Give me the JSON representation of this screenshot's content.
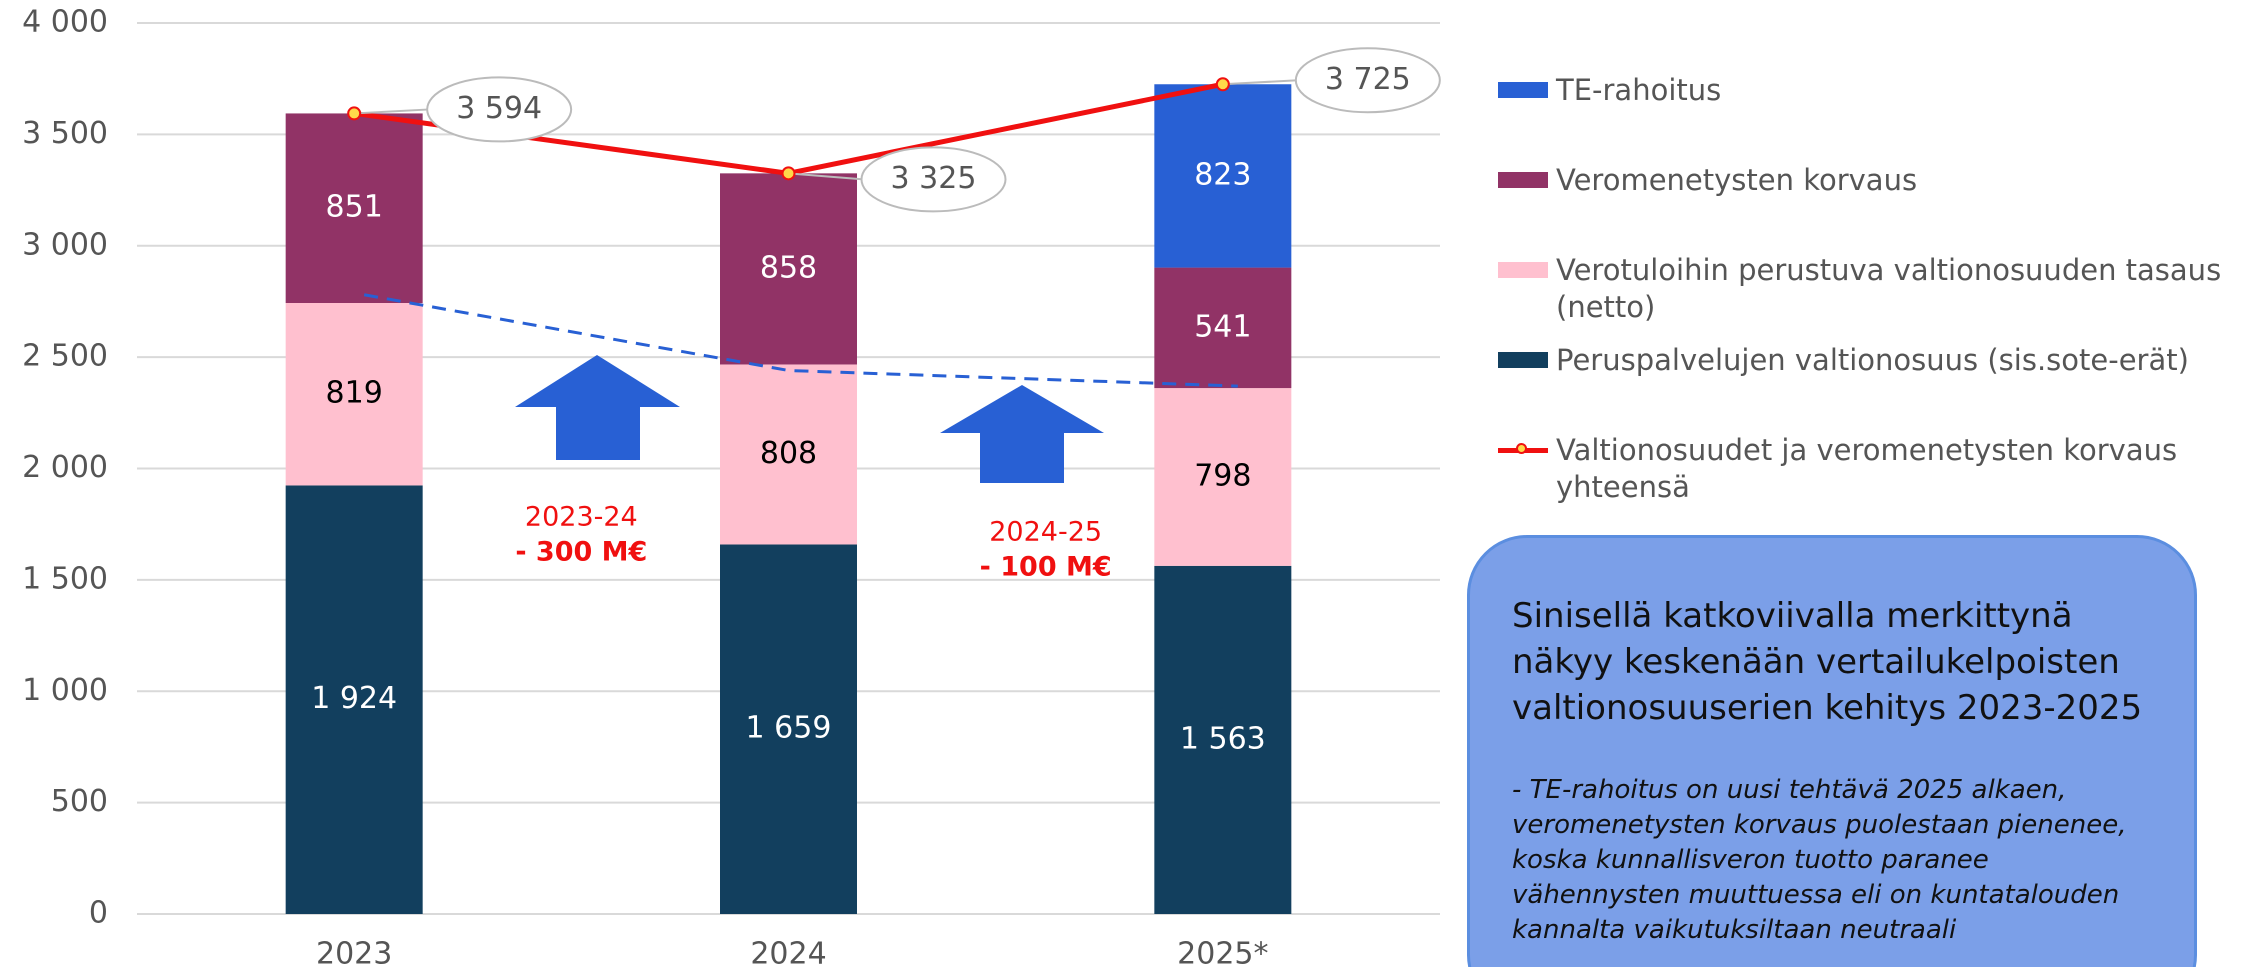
{
  "chart_data": {
    "type": "bar",
    "stacked": true,
    "categories": [
      "2023",
      "2024",
      "2025*"
    ],
    "ylim": [
      0,
      4000
    ],
    "yticks": [
      0,
      500,
      {
        "value": 1000,
        "label": "1 000"
      },
      {
        "value": 1500,
        "label": "1 500"
      },
      {
        "value": 2000,
        "label": "2 000"
      },
      {
        "value": 2500,
        "label": "2 500"
      },
      {
        "value": 3000,
        "label": "3 000"
      },
      {
        "value": 3500,
        "label": "3 500"
      },
      {
        "value": 4000,
        "label": "4 000"
      }
    ],
    "grid": true,
    "series": [
      {
        "name": "Peruspalvelujen valtionosuus (sis.sote-erät)",
        "color": "#123f5e",
        "values": [
          1924,
          1659,
          1563
        ],
        "value_labels": [
          "1 924",
          "1 659",
          "1 563"
        ]
      },
      {
        "name": "Verotuloihin perustuva valtionosuuden tasaus (netto)",
        "color": "#ffc0cf",
        "values": [
          819,
          808,
          798
        ]
      },
      {
        "name": "Veromenetysten korvaus",
        "color": "#913366",
        "values": [
          851,
          858,
          541
        ]
      },
      {
        "name": "TE-rahoitus",
        "color": "#2860d4",
        "values": [
          null,
          null,
          823
        ]
      }
    ],
    "line": {
      "name": "Valtionosuudet ja veromenetysten korvaus yhteensä",
      "color": "#f01010",
      "values": [
        3594,
        3325,
        3725
      ],
      "value_labels": [
        "3 594",
        "3 325",
        "3 725"
      ]
    },
    "dashed_line": {
      "color": "#2860d4",
      "values": [
        2780,
        2440,
        2370
      ]
    },
    "annotations": [
      {
        "period": "2023-24",
        "change": "- 300 M€"
      },
      {
        "period": "2024-25",
        "change": "- 100 M€"
      }
    ],
    "note": {
      "title": "Sinisellä katkoviivalla merkittynä näkyy keskenään vertailukelpoisten valtionosuuserien kehitys 2023-2025",
      "text": " - TE-rahoitus on uusi tehtävä 2025 alkaen, veromenetysten korvaus puolestaan pienenee, koska kunnallisveron tuotto paranee vähennysten muuttuessa eli on kuntatalouden kannalta vaikutuksiltaan neutraali"
    }
  }
}
